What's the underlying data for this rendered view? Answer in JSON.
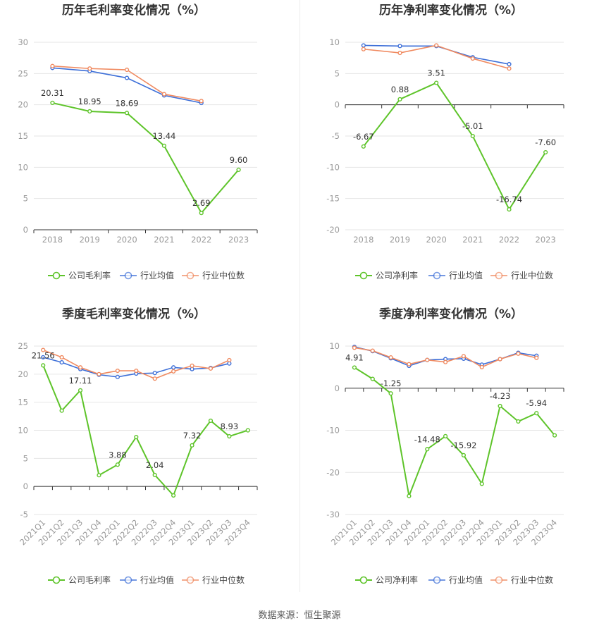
{
  "source": "数据来源：恒生聚源",
  "colors": {
    "company": "#5ec42a",
    "avg": "#3d6fd8",
    "median": "#f08a60",
    "grid": "#e6e6e6",
    "axis": "#333333"
  },
  "chart_data": [
    {
      "type": "line",
      "title": "历年毛利率变化情况（%）",
      "categories": [
        "2018",
        "2019",
        "2020",
        "2021",
        "2022",
        "2023"
      ],
      "ylim": [
        0,
        30
      ],
      "yticks": [
        0,
        5,
        10,
        15,
        20,
        25,
        30
      ],
      "rotate_x": false,
      "series": [
        {
          "name": "公司毛利率",
          "key": "company",
          "values": [
            20.31,
            18.95,
            18.69,
            13.44,
            2.69,
            9.6
          ]
        },
        {
          "name": "行业均值",
          "key": "avg",
          "values": [
            25.9,
            25.4,
            24.3,
            21.5,
            20.3,
            null
          ]
        },
        {
          "name": "行业中位数",
          "key": "median",
          "values": [
            26.2,
            25.8,
            25.6,
            21.7,
            20.6,
            null
          ]
        }
      ],
      "labels": [
        {
          "i": 0,
          "text": "20.31"
        },
        {
          "i": 1,
          "text": "18.95"
        },
        {
          "i": 2,
          "text": "18.69"
        },
        {
          "i": 3,
          "text": "13.44"
        },
        {
          "i": 4,
          "text": "2.69"
        },
        {
          "i": 5,
          "text": "9.60"
        }
      ],
      "legend": [
        "公司毛利率",
        "行业均值",
        "行业中位数"
      ]
    },
    {
      "type": "line",
      "title": "历年净利率变化情况（%）",
      "categories": [
        "2018",
        "2019",
        "2020",
        "2021",
        "2022",
        "2023"
      ],
      "ylim": [
        -20,
        10
      ],
      "yticks": [
        -20,
        -15,
        -10,
        -5,
        0,
        5,
        10
      ],
      "rotate_x": false,
      "series": [
        {
          "name": "公司净利率",
          "key": "company",
          "values": [
            -6.67,
            0.88,
            3.51,
            -5.01,
            -16.74,
            -7.6
          ]
        },
        {
          "name": "行业均值",
          "key": "avg",
          "values": [
            9.5,
            9.4,
            9.4,
            7.6,
            6.5,
            null
          ]
        },
        {
          "name": "行业中位数",
          "key": "median",
          "values": [
            8.9,
            8.3,
            9.5,
            7.4,
            5.8,
            null
          ]
        }
      ],
      "labels": [
        {
          "i": 0,
          "text": "-6.67"
        },
        {
          "i": 1,
          "text": "0.88"
        },
        {
          "i": 2,
          "text": "3.51"
        },
        {
          "i": 3,
          "text": "-5.01"
        },
        {
          "i": 4,
          "text": "-16.74"
        },
        {
          "i": 5,
          "text": "-7.60"
        }
      ],
      "legend": [
        "公司净利率",
        "行业均值",
        "行业中位数"
      ]
    },
    {
      "type": "line",
      "title": "季度毛利率变化情况（%）",
      "categories": [
        "2021Q1",
        "2021Q2",
        "2021Q3",
        "2021Q4",
        "2022Q1",
        "2022Q2",
        "2022Q3",
        "2022Q4",
        "2023Q1",
        "2023Q2",
        "2023Q3",
        "2023Q4"
      ],
      "ylim": [
        -5,
        25
      ],
      "yticks": [
        -5,
        0,
        5,
        10,
        15,
        20,
        25
      ],
      "rotate_x": true,
      "series": [
        {
          "name": "公司毛利率",
          "key": "company",
          "values": [
            21.56,
            13.5,
            17.11,
            2.0,
            3.88,
            8.8,
            2.04,
            -1.6,
            7.32,
            11.7,
            8.93,
            10.0
          ]
        },
        {
          "name": "行业均值",
          "key": "avg",
          "values": [
            23.0,
            22.1,
            20.9,
            19.9,
            19.5,
            20.1,
            20.2,
            21.2,
            20.9,
            21.1,
            21.9,
            null
          ]
        },
        {
          "name": "行业中位数",
          "key": "median",
          "values": [
            24.3,
            23.0,
            21.2,
            20.0,
            20.6,
            20.6,
            19.2,
            20.5,
            21.5,
            21.0,
            22.5,
            null
          ]
        }
      ],
      "labels": [
        {
          "i": 0,
          "text": "21.56"
        },
        {
          "i": 2,
          "text": "17.11"
        },
        {
          "i": 4,
          "text": "3.88"
        },
        {
          "i": 6,
          "text": "2.04"
        },
        {
          "i": 8,
          "text": "7.32"
        },
        {
          "i": 10,
          "text": "8.93"
        }
      ],
      "legend": [
        "公司毛利率",
        "行业均值",
        "行业中位数"
      ]
    },
    {
      "type": "line",
      "title": "季度净利率变化情况（%）",
      "categories": [
        "2021Q1",
        "2021Q2",
        "2021Q3",
        "2021Q4",
        "2022Q1",
        "2022Q2",
        "2022Q3",
        "2022Q4",
        "2023Q1",
        "2023Q2",
        "2023Q3",
        "2023Q4"
      ],
      "ylim": [
        -30,
        10
      ],
      "yticks": [
        -30,
        -20,
        -10,
        0,
        10
      ],
      "rotate_x": true,
      "series": [
        {
          "name": "公司净利率",
          "key": "company",
          "values": [
            4.91,
            2.2,
            -1.25,
            -25.6,
            -14.48,
            -11.4,
            -15.92,
            -22.7,
            -4.23,
            -7.9,
            -5.94,
            -11.2
          ]
        },
        {
          "name": "行业均值",
          "key": "avg",
          "values": [
            9.8,
            8.8,
            7.1,
            5.3,
            6.7,
            6.9,
            7.0,
            5.6,
            6.9,
            8.4,
            7.7,
            null
          ]
        },
        {
          "name": "行业中位数",
          "key": "median",
          "values": [
            9.6,
            8.9,
            7.3,
            5.7,
            6.7,
            6.2,
            7.6,
            5.0,
            6.9,
            8.2,
            7.2,
            null
          ]
        }
      ],
      "labels": [
        {
          "i": 0,
          "text": "4.91"
        },
        {
          "i": 2,
          "text": "-1.25"
        },
        {
          "i": 4,
          "text": "-14.48"
        },
        {
          "i": 6,
          "text": "-15.92"
        },
        {
          "i": 8,
          "text": "-4.23"
        },
        {
          "i": 10,
          "text": "-5.94"
        }
      ],
      "legend": [
        "公司净利率",
        "行业均值",
        "行业中位数"
      ]
    }
  ]
}
